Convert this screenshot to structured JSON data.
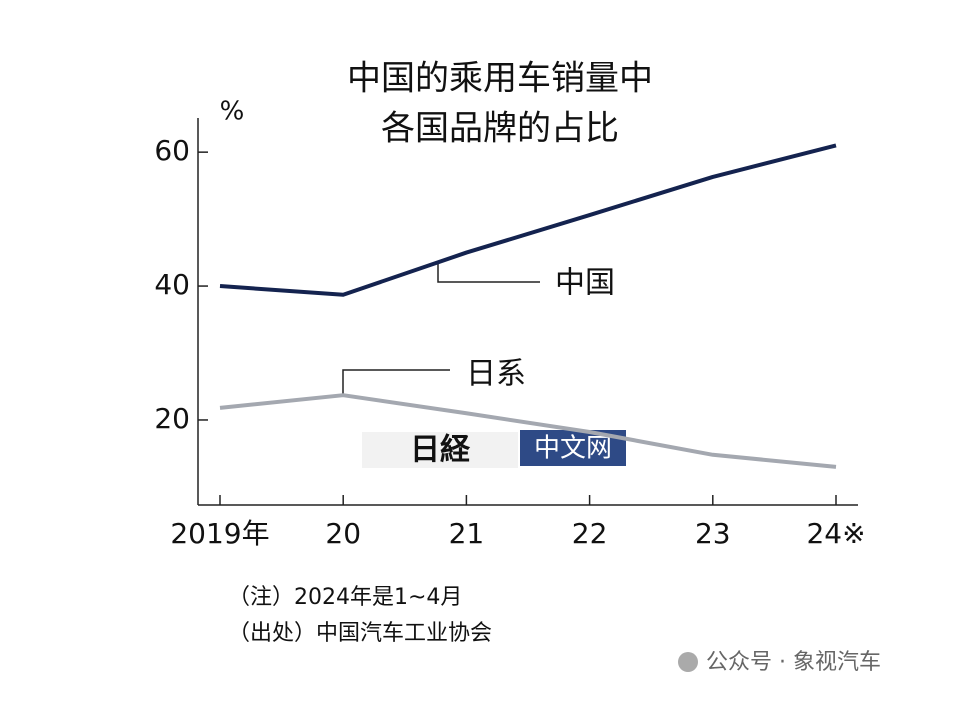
{
  "chart_data": {
    "type": "line",
    "title": [
      "中国的乘用车销量中",
      "各国品牌的占比"
    ],
    "y_label": "%",
    "categories": [
      "2019年",
      "20",
      "21",
      "22",
      "23",
      "24※"
    ],
    "series": [
      {
        "name": "中国",
        "color": "#14234f",
        "values": [
          40,
          38.7,
          45,
          50.6,
          56.3,
          61
        ]
      },
      {
        "name": "日系",
        "color": "#a4a8b0",
        "values": [
          21.8,
          23.7,
          21,
          18.2,
          14.8,
          13
        ]
      }
    ],
    "ylim": [
      7.3,
      65.1
    ],
    "yticks": [
      20,
      40,
      60
    ],
    "notes": [
      "（注）2024年是1~4月",
      "（出处）中国汽车工业协会"
    ],
    "watermark": [
      "日経",
      "中文网"
    ],
    "credit": "公众号 · 象视汽车"
  }
}
